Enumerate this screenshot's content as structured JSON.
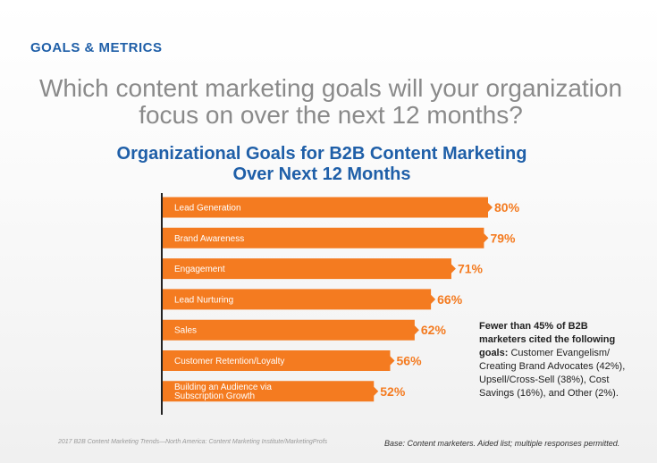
{
  "header": {
    "section_label": "GOALS & METRICS",
    "question": "Which content marketing goals will your organization focus on over the next 12 months?"
  },
  "chart_data": {
    "type": "bar",
    "orientation": "horizontal",
    "title": "Organizational Goals for B2B Content Marketing Over Next 12 Months",
    "categories": [
      "Lead Generation",
      "Brand Awareness",
      "Engagement",
      "Lead Nurturing",
      "Sales",
      "Customer Retention/Loyalty",
      "Building an Audience via Subscription Growth"
    ],
    "values": [
      80,
      79,
      71,
      66,
      62,
      56,
      52
    ],
    "value_labels": [
      "80%",
      "79%",
      "71%",
      "66%",
      "62%",
      "56%",
      "52%"
    ],
    "unit": "%",
    "bar_color": "#f47b20",
    "label_color": "#f47b20",
    "grid": false
  },
  "note": {
    "bold": "Fewer than 45% of B2B marketers cited the following goals:",
    "text": " Customer Evangelism/ Creating Brand Advocates (42%), Upsell/Cross-Sell (38%), Cost Savings (16%), and Other (2%)."
  },
  "footer": {
    "source": "2017 B2B Content Marketing Trends—North America: Content Marketing Institute/MarketingProfs",
    "base": "Base: Content marketers. Aided list; multiple responses permitted."
  }
}
